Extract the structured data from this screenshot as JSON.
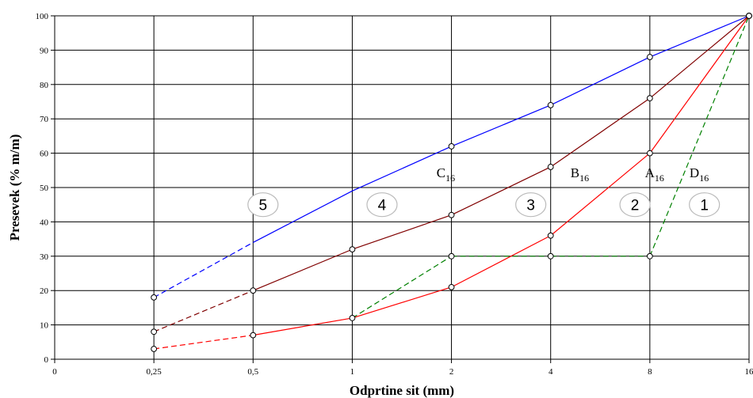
{
  "chart_data": {
    "type": "line",
    "xlabel": "Odprtine sit (mm)",
    "ylabel": "Presevek (% m/m)",
    "x_ticks": [
      "0",
      "0,25",
      "0,5",
      "1",
      "2",
      "4",
      "8",
      "16"
    ],
    "ylim": [
      0,
      100
    ],
    "y_ticks": [
      "0",
      "10",
      "20",
      "30",
      "40",
      "50",
      "60",
      "70",
      "80",
      "90",
      "100"
    ],
    "grid": true,
    "series": [
      {
        "name": "C",
        "sub": "16",
        "color": "#0000ff",
        "points": [
          [
            1,
            18
          ],
          [
            2,
            34
          ],
          [
            3,
            49
          ],
          [
            4,
            62
          ],
          [
            5,
            74
          ],
          [
            6,
            88
          ],
          [
            7,
            100
          ]
        ],
        "markers": [
          0,
          3,
          4,
          5,
          6
        ],
        "dashed_segments": [
          0
        ]
      },
      {
        "name": "B",
        "sub": "16",
        "color": "#800000",
        "points": [
          [
            1,
            8
          ],
          [
            2,
            20
          ],
          [
            3,
            32
          ],
          [
            4,
            42
          ],
          [
            5,
            56
          ],
          [
            6,
            76
          ],
          [
            7,
            100
          ]
        ],
        "markers": [
          0,
          1,
          2,
          3,
          4,
          5,
          6
        ],
        "dashed_segments": [
          0
        ]
      },
      {
        "name": "A",
        "sub": "16",
        "color": "#ff0000",
        "points": [
          [
            1,
            3
          ],
          [
            2,
            7
          ],
          [
            3,
            12
          ],
          [
            4,
            21
          ],
          [
            5,
            36
          ],
          [
            6,
            60
          ],
          [
            7,
            100
          ]
        ],
        "markers": [
          0,
          1,
          2,
          3,
          4,
          5,
          6
        ],
        "dashed_segments": [
          0
        ]
      },
      {
        "name": "D",
        "sub": "16",
        "color": "#008000",
        "points": [
          [
            3,
            12
          ],
          [
            4,
            30
          ],
          [
            5,
            30
          ],
          [
            6,
            30
          ],
          [
            7,
            100
          ]
        ],
        "markers": [
          1,
          2,
          3
        ],
        "dashed_segments": [
          0,
          1,
          2,
          3
        ]
      }
    ],
    "curve_labels": [
      {
        "text": "C",
        "sub": "16",
        "x": 3.85,
        "y": 53
      },
      {
        "text": "B",
        "sub": "16",
        "x": 5.2,
        "y": 53
      },
      {
        "text": "A",
        "sub": "16",
        "x": 5.95,
        "y": 53
      },
      {
        "text": "D",
        "sub": "16",
        "x": 6.4,
        "y": 53
      }
    ],
    "zones": [
      {
        "label": "5",
        "x": 2.1,
        "y": 45
      },
      {
        "label": "4",
        "x": 3.3,
        "y": 45
      },
      {
        "label": "3",
        "x": 4.8,
        "y": 45
      },
      {
        "label": "2",
        "x": 5.85,
        "y": 45
      },
      {
        "label": "1",
        "x": 6.55,
        "y": 45
      }
    ]
  }
}
